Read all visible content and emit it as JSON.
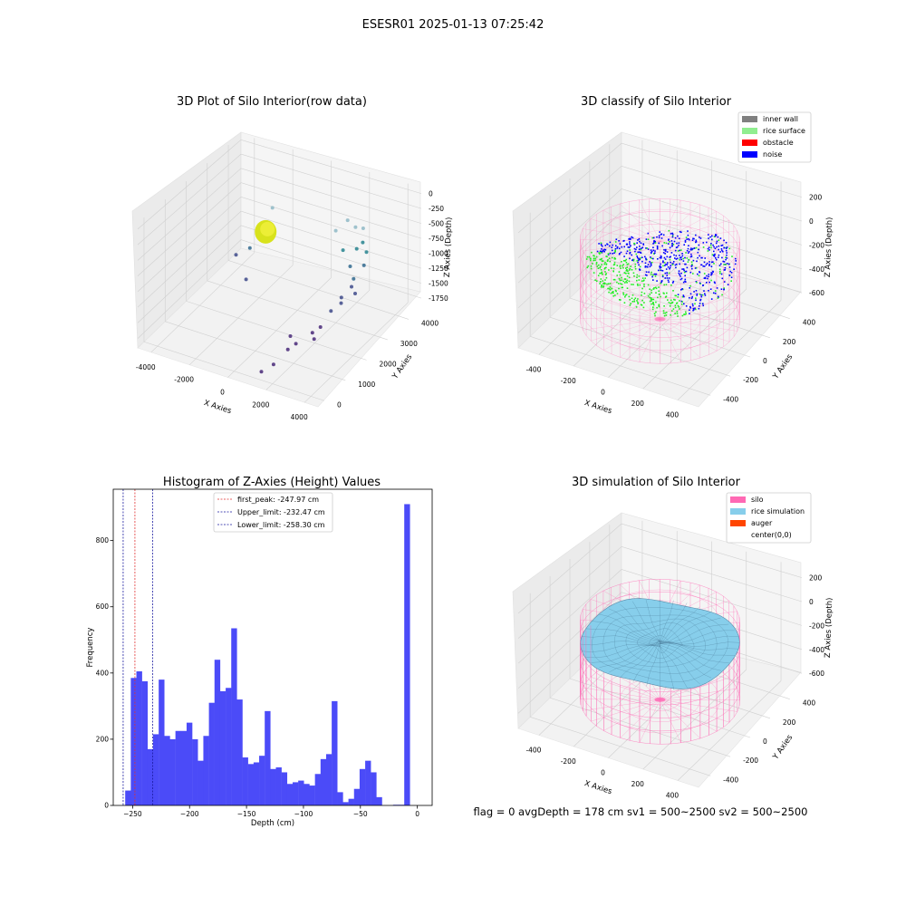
{
  "figure": {
    "suptitle": "ESESR01 2025-01-13 07:25:42",
    "footer": "flag = 0     avgDepth = 178 cm  sv1 = 500~2500  sv2 = 500~2500"
  },
  "colors": {
    "bar": "#4b4bf8",
    "peak_line": "#e03030",
    "limit_line": "#1a1aa0",
    "inner_wall": "#808080",
    "rice_surface": "#90ee90",
    "obstacle": "#ff0000",
    "noise": "#0000ff",
    "silo": "#ff69b4",
    "rice_simulation": "#87ceeb",
    "auger": "#ff4500",
    "pane": "#f2f2f2",
    "grid": "#d0d0d0"
  },
  "chart_data": [
    {
      "type": "scatter",
      "projection": "3d",
      "title": "3D Plot of Silo Interior(row data)",
      "xlabel": "X Axies",
      "ylabel": "Y Axies",
      "zlabel": "Z Axies (Depth)",
      "xticks": [
        "-4000",
        "-2000",
        "0",
        "2000",
        "4000"
      ],
      "yticks": [
        "0",
        "1000",
        "2000",
        "3000",
        "4000"
      ],
      "zticks": [
        "0",
        "-250",
        "-500",
        "-750",
        "-1000",
        "-1250",
        "-1500",
        "-1750"
      ],
      "xlim": [
        -4700,
        4700
      ],
      "ylim": [
        -300,
        4600
      ],
      "zlim": [
        -1900,
        100
      ],
      "grid": true,
      "points": [
        {
          "x": -2400,
          "y": 4000,
          "z": -750
        },
        {
          "x": -2700,
          "y": 3200,
          "z": -1200
        },
        {
          "x": -3200,
          "y": 3000,
          "z": -1300
        },
        {
          "x": -1800,
          "y": 2200,
          "z": -1300
        },
        {
          "x": 900,
          "y": 4000,
          "z": -800
        },
        {
          "x": 1300,
          "y": 4200,
          "z": -650
        },
        {
          "x": 1600,
          "y": 4300,
          "z": -770
        },
        {
          "x": 2000,
          "y": 4300,
          "z": -750
        },
        {
          "x": 2200,
          "y": 4100,
          "z": -900
        },
        {
          "x": 1500,
          "y": 3800,
          "z": -1000
        },
        {
          "x": 2100,
          "y": 3900,
          "z": -950
        },
        {
          "x": 2500,
          "y": 4000,
          "z": -1000
        },
        {
          "x": 2200,
          "y": 3500,
          "z": -1100
        },
        {
          "x": 2700,
          "y": 3700,
          "z": -1100
        },
        {
          "x": 2600,
          "y": 3300,
          "z": -1200
        },
        {
          "x": 2600,
          "y": 3200,
          "z": -1300
        },
        {
          "x": 2900,
          "y": 3100,
          "z": -1350
        },
        {
          "x": 2400,
          "y": 2900,
          "z": -1400
        },
        {
          "x": 2500,
          "y": 2800,
          "z": -1450
        },
        {
          "x": 2300,
          "y": 2500,
          "z": -1500
        },
        {
          "x": 2300,
          "y": 2000,
          "z": -1600
        },
        {
          "x": 2100,
          "y": 1800,
          "z": -1650
        },
        {
          "x": 2300,
          "y": 1700,
          "z": -1700
        },
        {
          "x": 1500,
          "y": 1300,
          "z": -1600
        },
        {
          "x": 1900,
          "y": 1200,
          "z": -1650
        },
        {
          "x": 1700,
          "y": 1000,
          "z": -1700
        },
        {
          "x": 1500,
          "y": 500,
          "z": -1800
        },
        {
          "x": 1200,
          "y": 200,
          "z": -1850
        }
      ],
      "cluster": {
        "x": -2150,
        "y": 3450,
        "z": -950
      }
    },
    {
      "type": "scatter",
      "projection": "3d",
      "title": "3D classify of Silo Interior",
      "xlabel": "X Axies",
      "ylabel": "Y Axies",
      "zlabel": "Z Axies (Depth)",
      "xticks": [
        "-400",
        "-200",
        "0",
        "200",
        "400"
      ],
      "yticks": [
        "-400",
        "-200",
        "0",
        "200",
        "400"
      ],
      "zticks": [
        "200",
        "0",
        "-200",
        "-400",
        "-600"
      ],
      "xlim": [
        -520,
        520
      ],
      "ylim": [
        -520,
        520
      ],
      "zlim": [
        -720,
        280
      ],
      "grid": true,
      "legend": [
        "inner wall",
        "rice surface",
        "obstacle",
        "noise"
      ],
      "legend_position": "upper right",
      "silo": {
        "radius": 400,
        "z_top": 0,
        "z_bottom": -650
      },
      "surface_depth": -200
    },
    {
      "type": "bar",
      "title": "Histogram of Z-Axies (Height) Values",
      "xlabel": "Depth (cm)",
      "ylabel": "Frequency",
      "xticks": [
        "-250",
        "-200",
        "-150",
        "-100",
        "-50",
        "0"
      ],
      "yticks": [
        "0",
        "200",
        "400",
        "600",
        "800"
      ],
      "xlim": [
        -267,
        13
      ],
      "ylim": [
        0,
        955
      ],
      "bin_start": -256.5,
      "bin_width": 4.9,
      "values": [
        45,
        385,
        405,
        375,
        170,
        215,
        380,
        210,
        200,
        225,
        225,
        250,
        200,
        135,
        210,
        310,
        440,
        345,
        355,
        535,
        320,
        145,
        125,
        130,
        150,
        285,
        110,
        115,
        100,
        65,
        70,
        75,
        65,
        60,
        95,
        140,
        155,
        315,
        40,
        10,
        20,
        50,
        110,
        135,
        100,
        25,
        0,
        0,
        2,
        2,
        910
      ],
      "vlines": [
        {
          "label": "first_peak: -247.97 cm",
          "x": -247.97,
          "color": "#e03030"
        },
        {
          "label": "Upper_limit: -232.47 cm",
          "x": -232.47,
          "color": "#1a1aa0"
        },
        {
          "label": "Lower_limit: -258.30 cm",
          "x": -258.3,
          "color": "#1a1aa0"
        }
      ],
      "legend_position": "upper center",
      "grid": false
    },
    {
      "type": "area",
      "projection": "3d",
      "title": "3D simulation of Silo Interior",
      "xlabel": "X Axies",
      "ylabel": "Y Axies",
      "zlabel": "Z Axies (Depth)",
      "xticks": [
        "-400",
        "-200",
        "0",
        "200",
        "400"
      ],
      "yticks": [
        "-400",
        "-200",
        "0",
        "200",
        "400"
      ],
      "zticks": [
        "200",
        "0",
        "-200",
        "-400",
        "-600"
      ],
      "xlim": [
        -520,
        520
      ],
      "ylim": [
        -520,
        520
      ],
      "zlim": [
        -720,
        280
      ],
      "grid": true,
      "legend": [
        "silo",
        "rice simulation",
        "auger",
        "center(0,0)"
      ],
      "legend_position": "upper right",
      "silo": {
        "radius": 400,
        "z_top": 0,
        "z_bottom": -650
      },
      "surface_depth": -178
    }
  ]
}
